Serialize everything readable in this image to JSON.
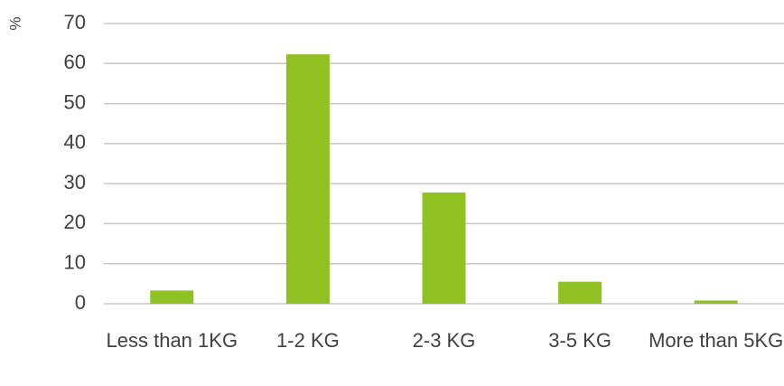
{
  "chart_data": {
    "type": "bar",
    "ylabel": "%",
    "categories": [
      "Less than 1KG",
      "1-2 KG",
      "2-3 KG",
      "3-5 KG",
      "More than 5KG"
    ],
    "values": [
      3.3,
      62.3,
      27.8,
      5.5,
      0.8
    ],
    "color": "#8fc123",
    "ylim": [
      0,
      70
    ],
    "yticks": [
      0,
      10,
      20,
      30,
      40,
      50,
      60,
      70
    ],
    "grid": true
  }
}
